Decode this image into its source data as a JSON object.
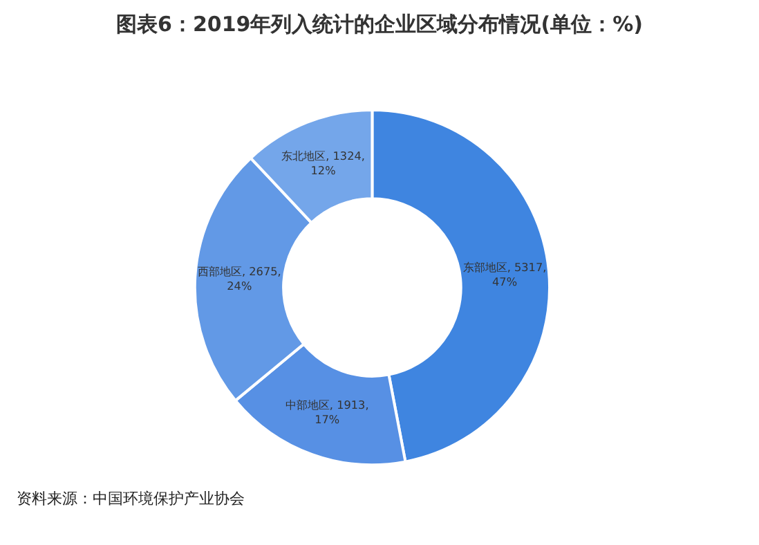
{
  "chart_data": {
    "type": "donut",
    "title": "图表6：2019年列入统计的企业区域分布情况(单位：%)",
    "categories": [
      "东部地区",
      "中部地区",
      "西部地区",
      "东北地区"
    ],
    "values": [
      47,
      17,
      24,
      12
    ],
    "value_labels": [
      "5317,\n47%",
      "1913,\n17%",
      "2675,\n24%",
      "1324,\n12%"
    ],
    "colors": [
      "#3f85e0",
      "#5790e4",
      "#6299e6",
      "#74a6ea"
    ],
    "legend": false,
    "annotations": [
      "资料来源：中国环境保护产业协会"
    ]
  }
}
